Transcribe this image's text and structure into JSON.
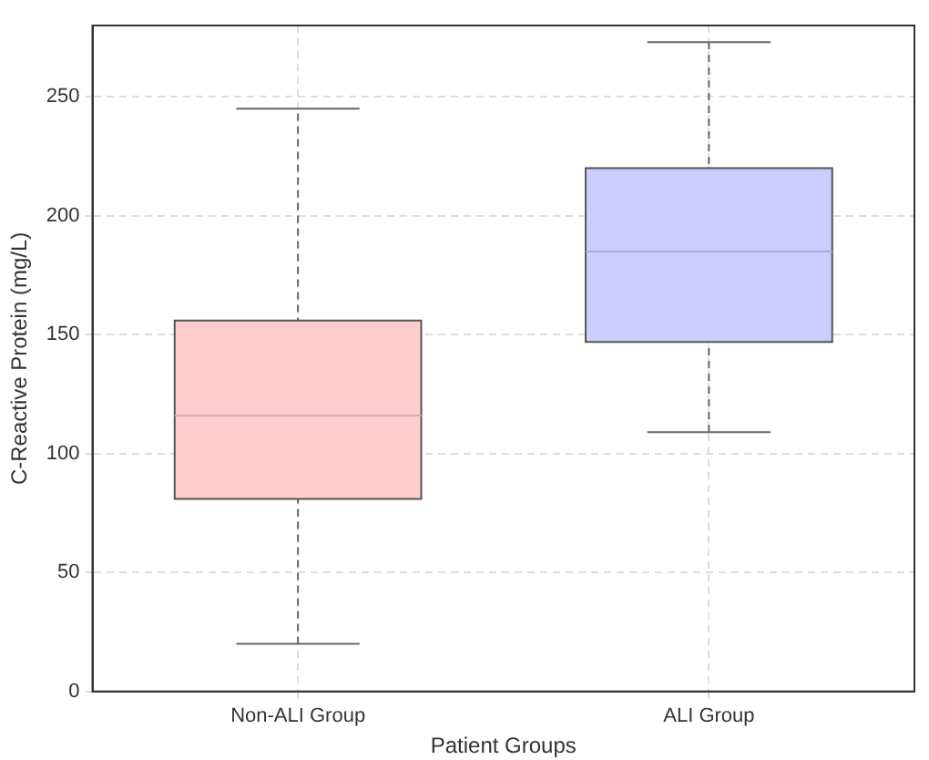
{
  "chart_data": {
    "type": "box",
    "xlabel": "Patient Groups",
    "ylabel": "C-Reactive Protein (mg/L)",
    "categories": [
      "Non-ALI Group",
      "ALI Group"
    ],
    "boxes": [
      {
        "low": 20,
        "q1": 81,
        "median": 116,
        "q3": 156,
        "high": 245
      },
      {
        "low": 109,
        "q1": 147,
        "median": 185,
        "q3": 220,
        "high": 273
      }
    ],
    "colors": [
      "#ffcccc",
      "#ccccff"
    ],
    "ylim": [
      0,
      280
    ],
    "yticks": [
      0,
      50,
      100,
      150,
      200,
      250
    ],
    "grid": true
  }
}
